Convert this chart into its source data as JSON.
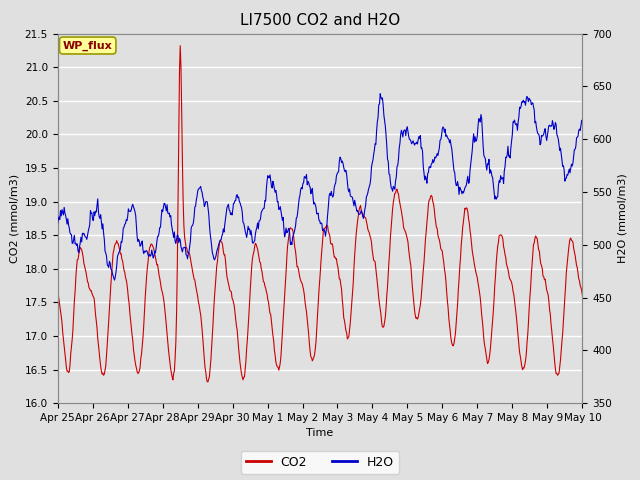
{
  "title": "LI7500 CO2 and H2O",
  "xlabel": "Time",
  "ylabel_left": "CO2 (mmol/m3)",
  "ylabel_right": "H2O (mmol/m3)",
  "annotation": "WP_flux",
  "co2_ylim": [
    16.0,
    21.5
  ],
  "h2o_ylim": [
    350,
    700
  ],
  "co2_yticks": [
    16.0,
    16.5,
    17.0,
    17.5,
    18.0,
    18.5,
    19.0,
    19.5,
    20.0,
    20.5,
    21.0,
    21.5
  ],
  "h2o_yticks": [
    350,
    400,
    450,
    500,
    550,
    600,
    650,
    700
  ],
  "xtick_labels": [
    "Apr 25",
    "Apr 26",
    "Apr 27",
    "Apr 28",
    "Apr 29",
    "Apr 30",
    "May 1",
    "May 2",
    "May 3",
    "May 4",
    "May 5",
    "May 6",
    "May 7",
    "May 8",
    "May 9",
    "May 10"
  ],
  "co2_color": "#cc0000",
  "h2o_color": "#0000cc",
  "background_color": "#e0e0e0",
  "plot_bg_color": "#e0e0e0",
  "grid_color": "#ffffff",
  "annotation_bg": "#ffff99",
  "annotation_border": "#999900",
  "legend_co2_label": "CO2",
  "legend_h2o_label": "H2O",
  "title_fontsize": 11,
  "label_fontsize": 8,
  "tick_fontsize": 7.5
}
